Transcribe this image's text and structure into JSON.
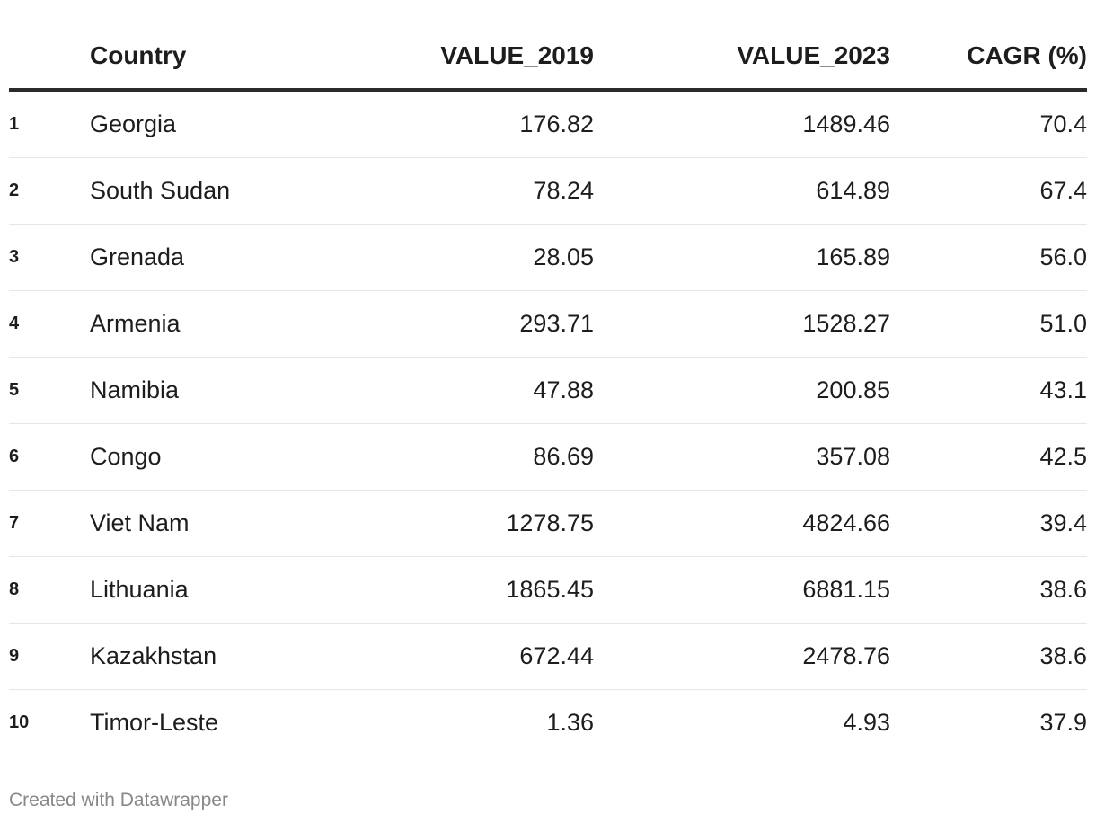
{
  "chart_data": {
    "type": "table",
    "columns": [
      "",
      "Country",
      "VALUE_2019",
      "VALUE_2023",
      "CAGR (%)"
    ],
    "rows": [
      {
        "rank": "1",
        "country": "Georgia",
        "value_2019": "176.82",
        "value_2023": "1489.46",
        "cagr": "70.4"
      },
      {
        "rank": "2",
        "country": "South Sudan",
        "value_2019": "78.24",
        "value_2023": "614.89",
        "cagr": "67.4"
      },
      {
        "rank": "3",
        "country": "Grenada",
        "value_2019": "28.05",
        "value_2023": "165.89",
        "cagr": "56.0"
      },
      {
        "rank": "4",
        "country": "Armenia",
        "value_2019": "293.71",
        "value_2023": "1528.27",
        "cagr": "51.0"
      },
      {
        "rank": "5",
        "country": "Namibia",
        "value_2019": "47.88",
        "value_2023": "200.85",
        "cagr": "43.1"
      },
      {
        "rank": "6",
        "country": "Congo",
        "value_2019": "86.69",
        "value_2023": "357.08",
        "cagr": "42.5"
      },
      {
        "rank": "7",
        "country": "Viet Nam",
        "value_2019": "1278.75",
        "value_2023": "4824.66",
        "cagr": "39.4"
      },
      {
        "rank": "8",
        "country": "Lithuania",
        "value_2019": "1865.45",
        "value_2023": "6881.15",
        "cagr": "38.6"
      },
      {
        "rank": "9",
        "country": "Kazakhstan",
        "value_2019": "672.44",
        "value_2023": "2478.76",
        "cagr": "38.6"
      },
      {
        "rank": "10",
        "country": "Timor-Leste",
        "value_2019": "1.36",
        "value_2023": "4.93",
        "cagr": "37.9"
      }
    ]
  },
  "footer": {
    "credit": "Created with Datawrapper"
  },
  "colors": {
    "text": "#1d1d1d",
    "header_rule": "#2b2b2b",
    "row_divider": "#e6e6e6",
    "footer_text": "#888888"
  }
}
